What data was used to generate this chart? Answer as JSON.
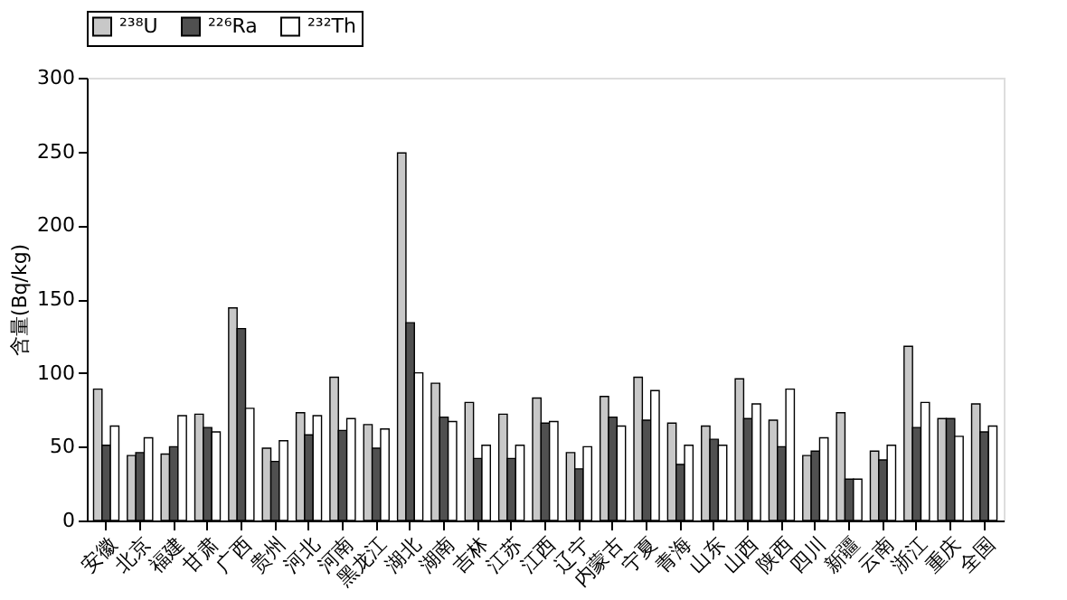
{
  "chart_data": {
    "type": "bar",
    "ylabel": "含量(Bq/kg)",
    "categories": [
      "安徽",
      "北京",
      "福建",
      "甘肃",
      "广西",
      "贵州",
      "河北",
      "河南",
      "黑龙江",
      "湖北",
      "湖南",
      "吉林",
      "江苏",
      "江西",
      "辽宁",
      "内蒙古",
      "宁夏",
      "青海",
      "山东",
      "山西",
      "陕西",
      "四川",
      "新疆",
      "云南",
      "浙江",
      "重庆",
      "全国"
    ],
    "series": [
      {
        "name": "²³⁸U",
        "color": "#c8c8c8",
        "values": [
          89,
          44,
          45,
          72,
          144,
          49,
          73,
          97,
          65,
          249,
          93,
          80,
          72,
          83,
          46,
          84,
          97,
          66,
          64,
          96,
          68,
          44,
          73,
          47,
          118,
          69,
          79
        ]
      },
      {
        "name": "²²⁶Ra",
        "color": "#505050",
        "values": [
          51,
          46,
          50,
          63,
          130,
          40,
          58,
          61,
          49,
          134,
          70,
          42,
          42,
          66,
          35,
          70,
          68,
          38,
          55,
          69,
          50,
          47,
          28,
          41,
          63,
          69,
          60
        ]
      },
      {
        "name": "²³²Th",
        "color": "#ffffff",
        "values": [
          64,
          56,
          71,
          60,
          76,
          54,
          71,
          69,
          62,
          100,
          67,
          51,
          51,
          67,
          50,
          64,
          88,
          51,
          51,
          79,
          89,
          56,
          28,
          51,
          80,
          57,
          64
        ]
      }
    ],
    "ylim": [
      0,
      300
    ],
    "yticks": [
      0,
      50,
      100,
      150,
      200,
      250,
      300
    ],
    "grid": false,
    "legend": "top"
  }
}
